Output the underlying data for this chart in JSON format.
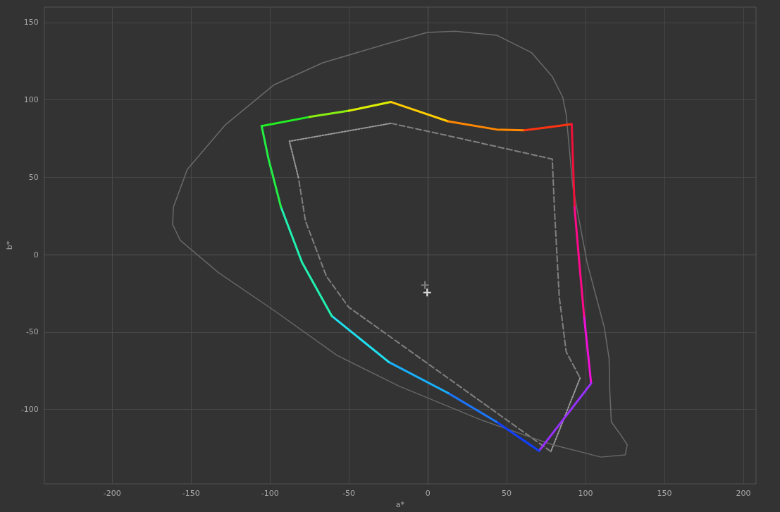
{
  "chart_data": {
    "type": "line",
    "xlabel": "a*",
    "ylabel": "b*",
    "xlim": [
      -243,
      208
    ],
    "ylim": [
      -148,
      160
    ],
    "xticks": [
      -200,
      -150,
      -100,
      -50,
      0,
      50,
      100,
      150,
      200
    ],
    "yticks": [
      -100,
      -50,
      0,
      50,
      100,
      150
    ],
    "grid": true,
    "marker": "none",
    "line_style": "solid",
    "series": [
      {
        "color": "#6a6a6a",
        "x": [
          -161.7,
          -161.2,
          -152.4,
          -128.2,
          -97.4,
          -66.5,
          -26.9,
          -0.4,
          17.2,
          43.6,
          65.6,
          78.9,
          85.5,
          87.7,
          91.9,
          100.9,
          111.9,
          114.9,
          115.2,
          116.3,
          122,
          126.4
        ],
        "values": [
          19.6,
          30.7,
          55.1,
          84,
          109.8,
          124,
          136,
          143.6,
          144.4,
          141.8,
          130.7,
          115.1,
          101.8,
          90.7,
          44,
          -4.9,
          -47.1,
          -67.1,
          -84.9,
          -108,
          -116,
          -122.7
        ]
      },
      {
        "color": "#666666",
        "x": [
          126.4,
          125.1,
          109.7,
          78.9,
          34.8,
          -18.1,
          -57.7,
          -97.4,
          -132.6,
          -156.8,
          -161.7
        ],
        "values": [
          -122.7,
          -129.3,
          -130.7,
          -122.7,
          -107.1,
          -84.9,
          -64.9,
          -36,
          -11.6,
          9.3,
          19.6
        ]
      },
      {
        "color": "#808080",
        "line_style": "dashed",
        "x": [
          -23.3,
          12.8,
          78.9,
          80.2,
          83.3,
          87.7,
          96.5
        ],
        "values": [
          84.9,
          76.9,
          61.8,
          30.7,
          -27.1,
          -62.7,
          -79.6
        ]
      },
      {
        "color": "#9c9c9c",
        "line_style": "dotted",
        "x": [
          96.5,
          78
        ],
        "values": [
          -79.6,
          -127.1
        ]
      },
      {
        "color": "#808080",
        "line_style": "dashed",
        "x": [
          78,
          -50.2,
          -64.3,
          -77.5,
          -82
        ],
        "values": [
          -127.1,
          -33.8,
          -13.8,
          21.8,
          50
        ]
      },
      {
        "color": "#9c9c9c",
        "line_style": "dotted",
        "x": [
          -82,
          -87.7,
          -23.3
        ],
        "values": [
          50,
          73.3,
          84.9
        ]
      },
      {
        "color": "#22ee22",
        "x": [
          -105.3,
          -75
        ],
        "values": [
          83.1,
          89
        ]
      },
      {
        "color": "#88ee11",
        "x": [
          -75,
          -50
        ],
        "values": [
          89,
          93
        ]
      },
      {
        "color": "#ddee00",
        "x": [
          -50,
          -23.3
        ],
        "values": [
          93,
          98.7
        ]
      },
      {
        "color": "#ffcc00",
        "x": [
          -23.3,
          12.8
        ],
        "values": [
          98.7,
          86.2
        ]
      },
      {
        "color": "#ff8800",
        "x": [
          12.8,
          43.6,
          61.2
        ],
        "values": [
          86.2,
          80.9,
          80.4
        ]
      },
      {
        "color": "#ff3311",
        "x": [
          61.2,
          78.9,
          91.2
        ],
        "values": [
          80.4,
          82.7,
          84.4
        ]
      },
      {
        "color": "#f0103a",
        "x": [
          91.2,
          93
        ],
        "values": [
          84.4,
          30.7
        ]
      },
      {
        "color": "#ff0a8a",
        "x": [
          93,
          95.6,
          99.1
        ],
        "values": [
          30.7,
          -0.4,
          -40.4
        ]
      },
      {
        "color": "#f010d8",
        "x": [
          99.1,
          103.5
        ],
        "values": [
          -40.4,
          -83.1
        ]
      },
      {
        "color": "#9a30ff",
        "x": [
          103.5,
          70.5
        ],
        "values": [
          -83.1,
          -126.7
        ]
      },
      {
        "color": "#1040ff",
        "x": [
          70.5,
          43.6
        ],
        "values": [
          -126.7,
          -108
        ]
      },
      {
        "color": "#1a78ff",
        "x": [
          43.6,
          12.8
        ],
        "values": [
          -108,
          -89.3
        ]
      },
      {
        "color": "#18b0ff",
        "x": [
          12.8,
          -24.7
        ],
        "values": [
          -89.3,
          -69.3
        ]
      },
      {
        "color": "#20e0f0",
        "x": [
          -24.7,
          -60.8
        ],
        "values": [
          -69.3,
          -39.6
        ]
      },
      {
        "color": "#20f0b0",
        "x": [
          -60.8,
          -79.7,
          -93
        ],
        "values": [
          -39.6,
          -4.9,
          30.7
        ]
      },
      {
        "color": "#22ee44",
        "x": [
          -93,
          -100.9,
          -105.3
        ],
        "values": [
          30.7,
          61.8,
          83.1
        ]
      },
      {
        "type": "scatter",
        "marker": "cross",
        "color": "#8c8c8c",
        "x": [
          -1.8
        ],
        "values": [
          -19.6
        ]
      },
      {
        "type": "scatter",
        "marker": "cross",
        "color": "#ffffff",
        "x": [
          -0.4
        ],
        "values": [
          -24.4
        ]
      }
    ]
  }
}
